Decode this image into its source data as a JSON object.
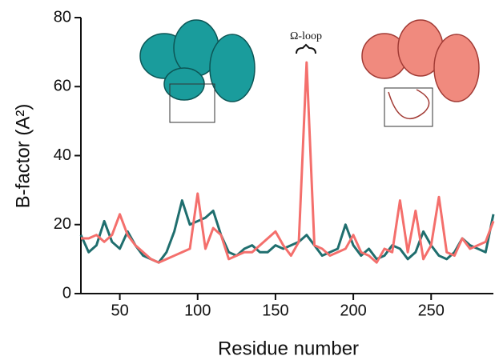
{
  "chart_data": {
    "type": "line",
    "x_label": "Residue number",
    "y_label": "B-factor (A²)",
    "annotation": "Ω-loop",
    "x": [
      25,
      30,
      35,
      40,
      45,
      50,
      55,
      60,
      65,
      70,
      75,
      80,
      85,
      90,
      95,
      100,
      105,
      110,
      115,
      120,
      125,
      130,
      135,
      140,
      145,
      150,
      155,
      160,
      165,
      170,
      175,
      180,
      185,
      190,
      195,
      200,
      205,
      210,
      215,
      220,
      225,
      230,
      235,
      240,
      245,
      250,
      255,
      260,
      265,
      270,
      275,
      280,
      285,
      290
    ],
    "series": [
      {
        "color": "#1f6e6e",
        "values": [
          17,
          12,
          14,
          21,
          15,
          13,
          18,
          14,
          11,
          10,
          9,
          12,
          18,
          27,
          20,
          21,
          22,
          24,
          17,
          12,
          11,
          13,
          14,
          12,
          12,
          14,
          13,
          14,
          15,
          17,
          14,
          11,
          12,
          13,
          20,
          14,
          11,
          13,
          10,
          11,
          14,
          13,
          10,
          12,
          18,
          14,
          11,
          10,
          12,
          16,
          14,
          13,
          12,
          23
        ]
      },
      {
        "color": "#f46f6c",
        "values": [
          16,
          16,
          17,
          15,
          17,
          23,
          17,
          14,
          12,
          10,
          9,
          10,
          11,
          12,
          13,
          29,
          13,
          19,
          17,
          10,
          11,
          12,
          12,
          14,
          16,
          18,
          14,
          11,
          15,
          67,
          14,
          13,
          11,
          12,
          13,
          17,
          12,
          11,
          9,
          13,
          12,
          27,
          12,
          24,
          10,
          14,
          28,
          12,
          11,
          16,
          13,
          14,
          15,
          21
        ]
      }
    ],
    "xlim": [
      25,
      290
    ],
    "ylim": [
      0,
      80
    ],
    "xticks": [
      50,
      100,
      150,
      200,
      250
    ],
    "yticks": [
      0,
      20,
      40,
      60,
      80
    ]
  }
}
